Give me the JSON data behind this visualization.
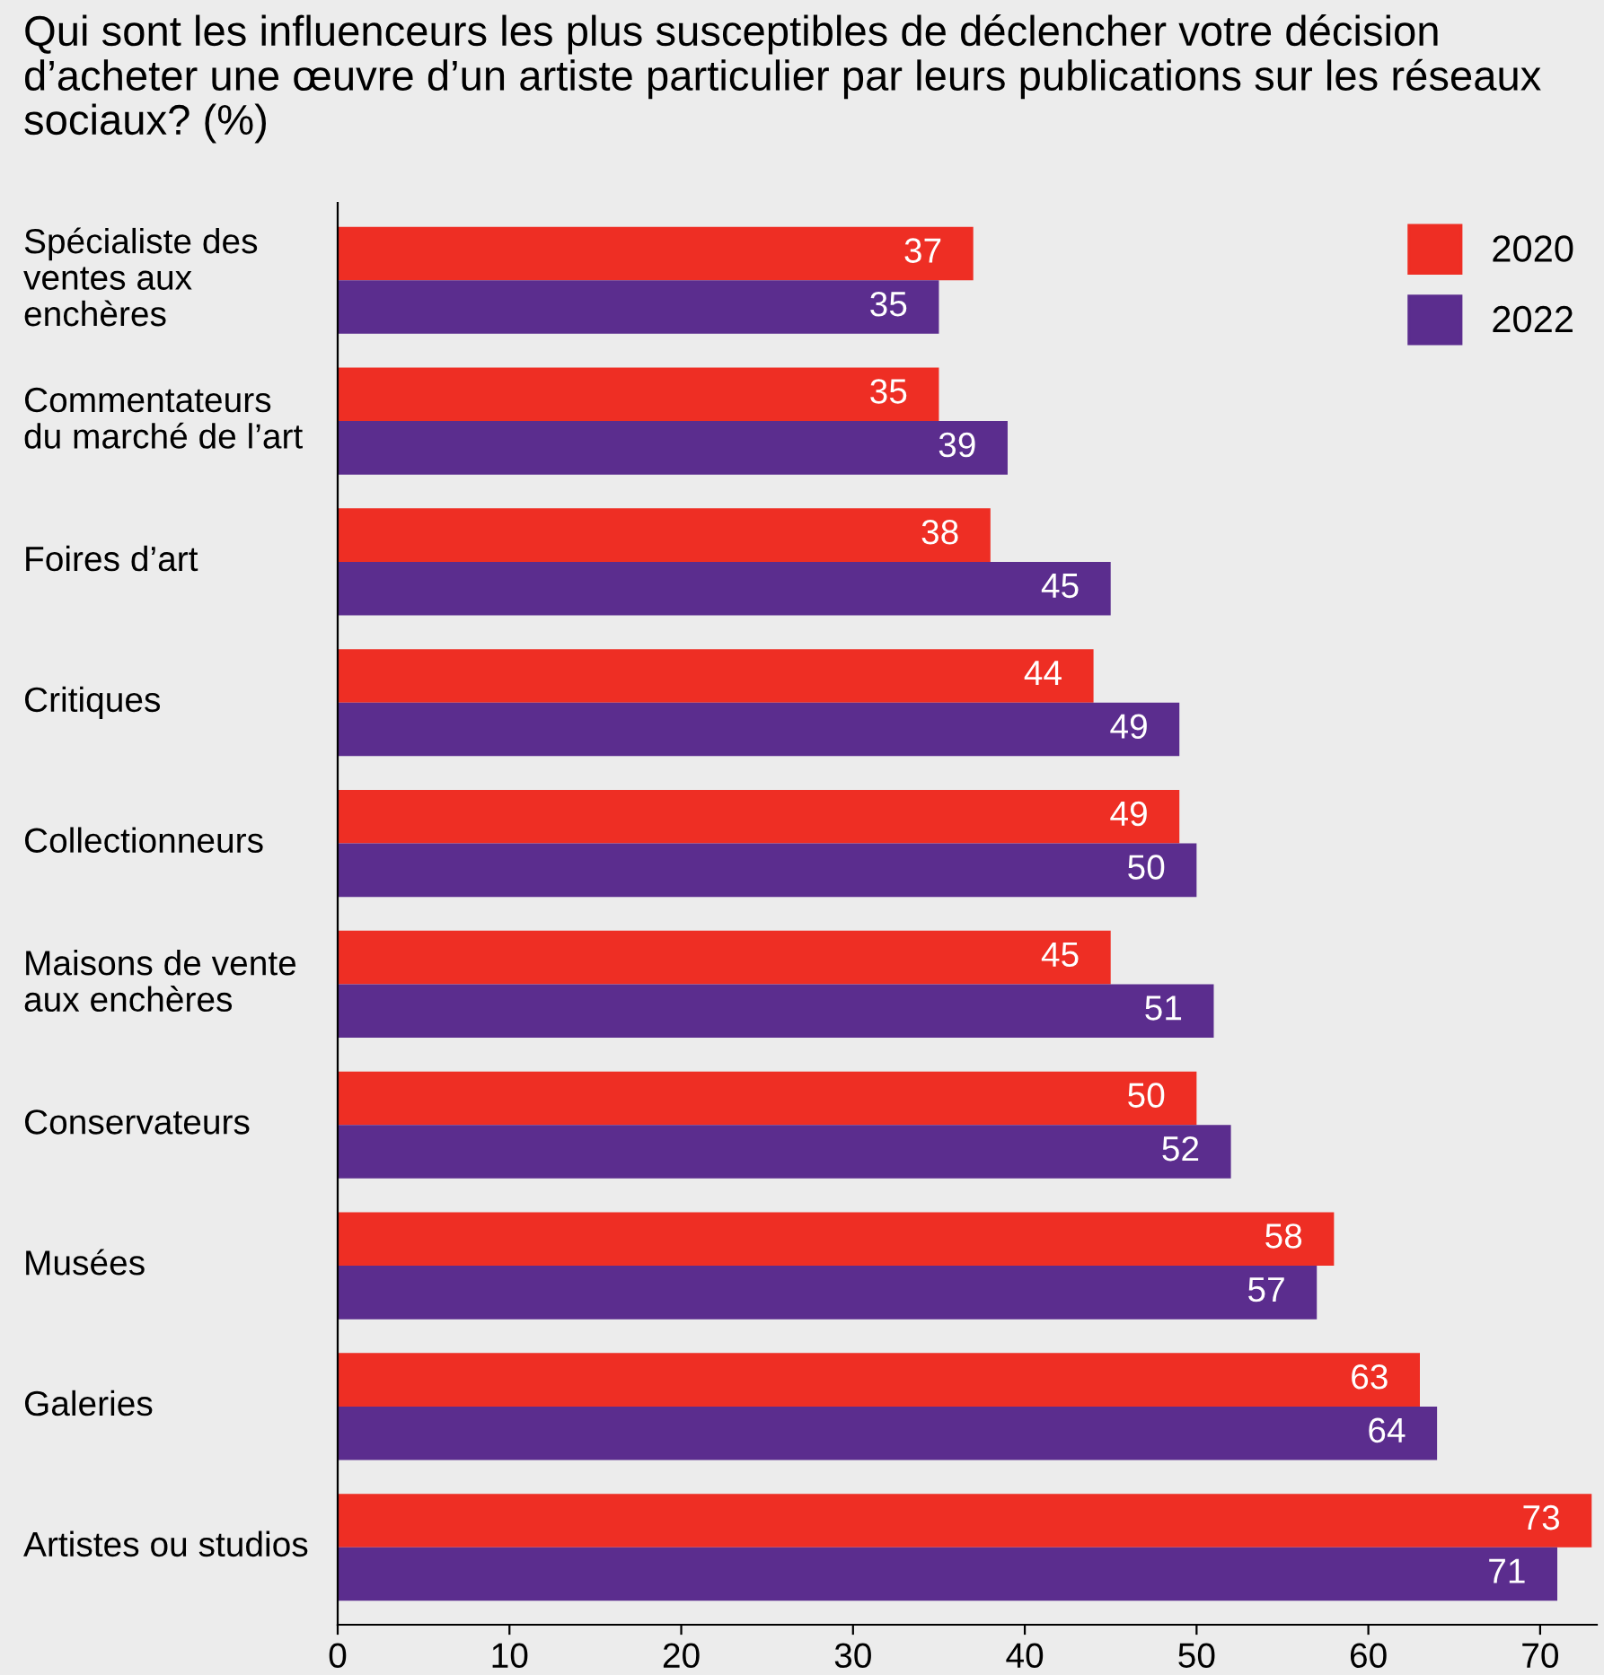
{
  "chart_data": {
    "type": "bar",
    "orientation": "horizontal",
    "title": "Qui sont les influenceurs les plus susceptibles de déclencher votre décision d’acheter une œuvre d’un artiste particulier par leurs publications sur les réseaux sociaux? (%)",
    "categories": [
      "Spécialiste des\nventes aux\nenchères",
      "Commentateurs\ndu marché de l’art",
      "Foires d’art",
      "Critiques",
      "Collectionneurs",
      "Maisons de vente\naux enchères",
      "Conservateurs",
      "Musées",
      "Galeries",
      "Artistes ou studios"
    ],
    "series": [
      {
        "name": "2020",
        "color": "#ee2e24",
        "values": [
          37,
          35,
          38,
          44,
          49,
          45,
          50,
          58,
          63,
          73
        ]
      },
      {
        "name": "2022",
        "color": "#5b2d8e",
        "values": [
          35,
          39,
          45,
          49,
          50,
          51,
          52,
          57,
          64,
          71
        ]
      }
    ],
    "xlim": [
      0,
      73.3
    ],
    "xticks": [
      0,
      10,
      20,
      30,
      40,
      50,
      60,
      70
    ],
    "data_labels": true,
    "legend": "top right",
    "grid": false
  }
}
